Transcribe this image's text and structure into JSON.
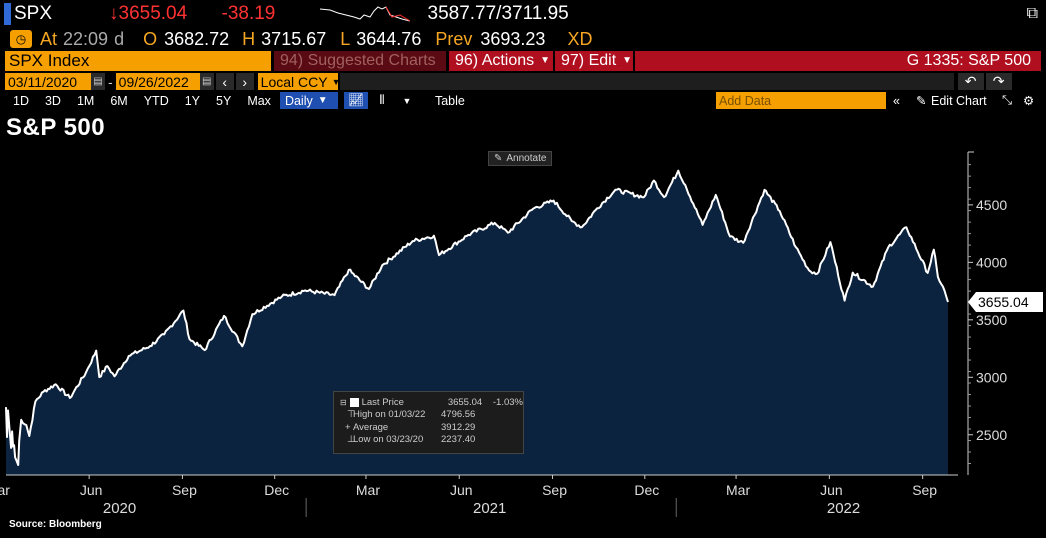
{
  "ticker": {
    "symbol": "SPX",
    "last": "3655.04",
    "change": "-38.19",
    "range": "3587.77/3711.95",
    "at_label": "At",
    "time": "22:09",
    "time_flag": "d",
    "open_label": "O",
    "open": "3682.72",
    "high_label": "H",
    "high": "3715.67",
    "low_label": "L",
    "low": "3644.76",
    "prev_label": "Prev",
    "prev": "3693.23",
    "xd": "XD"
  },
  "toolbar": {
    "security": "SPX Index",
    "suggested": "94) Suggested Charts",
    "actions": "96) Actions",
    "edit": "97) Edit",
    "function": "G 1335: S&P 500"
  },
  "daterange": {
    "start": "03/11/2020",
    "end": "09/26/2022",
    "currency": "Local CCY"
  },
  "periods": [
    "1D",
    "3D",
    "1M",
    "6M",
    "YTD",
    "1Y",
    "5Y",
    "Max"
  ],
  "frequency": "Daily",
  "table_label": "Table",
  "add_data_placeholder": "Add Data",
  "edit_chart": "Edit Chart",
  "annotate": "Annotate",
  "source": "Source: Bloomberg",
  "legend": {
    "rows": [
      {
        "label": "Last Price",
        "value": "3655.04",
        "extra": "-1.03%"
      },
      {
        "label": "High on 01/03/22",
        "value": "4796.56",
        "extra": ""
      },
      {
        "label": "Average",
        "value": "3912.29",
        "extra": ""
      },
      {
        "label": "Low on 03/23/20",
        "value": "2237.40",
        "extra": ""
      }
    ]
  },
  "colors": {
    "amber": "#f5a623",
    "red": "#ff3232",
    "area_fill": "#0c2340",
    "line": "#ffffff",
    "toolbar_red": "#b00f1f"
  },
  "chart_data": {
    "type": "area",
    "title": "S&P 500",
    "xlabel": "",
    "ylabel": "",
    "last_label": "3655.04",
    "yticks": [
      2500,
      3000,
      3500,
      4000,
      4500
    ],
    "ylim": [
      2150,
      4960
    ],
    "xlim": [
      "2020-03-11",
      "2022-09-26"
    ],
    "month_ticks": [
      {
        "date": "2020-03-01",
        "label": "Mar"
      },
      {
        "date": "2020-06-01",
        "label": "Jun"
      },
      {
        "date": "2020-09-01",
        "label": "Sep"
      },
      {
        "date": "2020-12-01",
        "label": "Dec"
      },
      {
        "date": "2021-03-01",
        "label": "Mar"
      },
      {
        "date": "2021-06-01",
        "label": "Jun"
      },
      {
        "date": "2021-09-01",
        "label": "Sep"
      },
      {
        "date": "2021-12-01",
        "label": "Dec"
      },
      {
        "date": "2022-03-01",
        "label": "Mar"
      },
      {
        "date": "2022-06-01",
        "label": "Jun"
      },
      {
        "date": "2022-09-01",
        "label": "Sep"
      }
    ],
    "year_ticks": [
      {
        "date": "2020-07-01",
        "label": "2020"
      },
      {
        "date": "2021-07-01",
        "label": "2021"
      },
      {
        "date": "2022-06-15",
        "label": "2022"
      }
    ],
    "year_boundaries": [
      "2021-01-01",
      "2022-01-01"
    ],
    "series": [
      {
        "x": [
          "2020-03-11",
          "2020-03-12",
          "2020-03-13",
          "2020-03-16",
          "2020-03-17",
          "2020-03-18",
          "2020-03-19",
          "2020-03-20",
          "2020-03-23",
          "2020-03-24",
          "2020-03-26",
          "2020-03-31",
          "2020-04-03",
          "2020-04-09",
          "2020-04-17",
          "2020-04-29",
          "2020-05-13",
          "2020-05-29",
          "2020-06-08",
          "2020-06-11",
          "2020-06-19",
          "2020-06-26",
          "2020-07-10",
          "2020-07-31",
          "2020-08-14",
          "2020-09-02",
          "2020-09-08",
          "2020-09-23",
          "2020-10-12",
          "2020-10-30",
          "2020-11-09",
          "2020-12-08",
          "2020-12-31",
          "2021-01-29",
          "2021-02-12",
          "2021-03-04",
          "2021-03-17",
          "2021-04-16",
          "2021-05-07",
          "2021-05-12",
          "2021-06-10",
          "2021-07-06",
          "2021-07-19",
          "2021-08-13",
          "2021-09-02",
          "2021-09-20",
          "2021-09-30",
          "2021-10-15",
          "2021-11-02",
          "2021-11-30",
          "2021-12-10",
          "2021-12-20",
          "2022-01-03",
          "2022-01-10",
          "2022-01-27",
          "2022-02-09",
          "2022-02-23",
          "2022-03-08",
          "2022-03-29",
          "2022-04-13",
          "2022-04-29",
          "2022-05-12",
          "2022-05-20",
          "2022-06-02",
          "2022-06-16",
          "2022-06-24",
          "2022-07-14",
          "2022-07-29",
          "2022-08-16",
          "2022-09-06",
          "2022-09-12",
          "2022-09-16",
          "2022-09-21",
          "2022-09-26"
        ],
        "y": [
          2741,
          2481,
          2711,
          2386,
          2529,
          2398,
          2409,
          2305,
          2237,
          2447,
          2630,
          2585,
          2489,
          2790,
          2875,
          2939,
          2820,
          3044,
          3232,
          3002,
          3097,
          3009,
          3185,
          3271,
          3373,
          3580,
          3332,
          3237,
          3534,
          3270,
          3550,
          3702,
          3756,
          3714,
          3934,
          3768,
          3974,
          4185,
          4232,
          4063,
          4239,
          4343,
          4258,
          4468,
          4537,
          4358,
          4307,
          4471,
          4631,
          4567,
          4712,
          4568,
          4797,
          4670,
          4326,
          4587,
          4225,
          4170,
          4631,
          4447,
          4132,
          3930,
          3901,
          4176,
          3667,
          3911,
          3790,
          4130,
          4305,
          3908,
          4110,
          3873,
          3790,
          3655
        ]
      }
    ]
  }
}
